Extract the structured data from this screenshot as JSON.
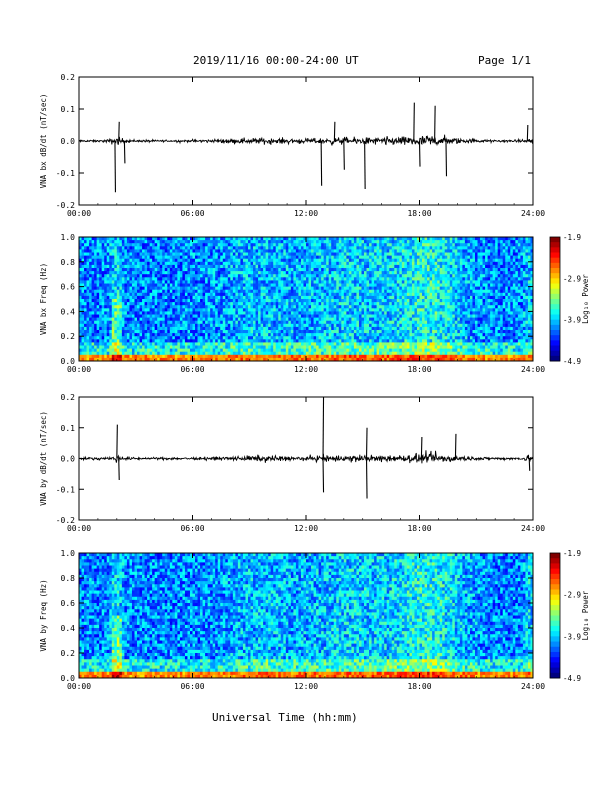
{
  "header": {
    "title": "2019/11/16  00:00-24:00 UT",
    "page": "Page 1/1"
  },
  "xlabel": "Universal Time (hh:mm)",
  "colorbar": {
    "label": "Log₁₀ Power",
    "ticks": [
      "-1.9",
      "-2.9",
      "-3.9",
      "-4.9"
    ],
    "range": [
      -4.9,
      -1.9
    ]
  },
  "chart_data": [
    {
      "type": "line",
      "ylabel": "VNA bx dB/dt (nT/sec)",
      "xlim": [
        0,
        24
      ],
      "ylim": [
        -0.2,
        0.2
      ],
      "x_ticks": [
        "00:00",
        "06:00",
        "12:00",
        "18:00",
        "24:00"
      ],
      "y_ticks": [
        "0.2",
        "0.1",
        "0.0",
        "-0.1",
        "-0.2"
      ],
      "bursts": [
        {
          "x": 1.9,
          "y": -0.16
        },
        {
          "x": 2.1,
          "y": 0.06
        },
        {
          "x": 2.4,
          "y": -0.07
        },
        {
          "x": 12.8,
          "y": -0.14
        },
        {
          "x": 13.5,
          "y": 0.06
        },
        {
          "x": 14.0,
          "y": -0.09
        },
        {
          "x": 15.1,
          "y": -0.15
        },
        {
          "x": 17.7,
          "y": 0.12
        },
        {
          "x": 18.0,
          "y": -0.08
        },
        {
          "x": 18.8,
          "y": 0.11
        },
        {
          "x": 19.4,
          "y": -0.11
        },
        {
          "x": 23.7,
          "y": 0.05
        }
      ]
    },
    {
      "type": "heatmap",
      "ylabel": "VNA bx Freq (Hz)",
      "xlim": [
        0,
        24
      ],
      "ylim": [
        0,
        1.0
      ],
      "x_ticks": [
        "00:00",
        "06:00",
        "12:00",
        "18:00",
        "24:00"
      ],
      "y_ticks": [
        "1.0",
        "0.8",
        "0.6",
        "0.4",
        "0.2",
        "0.0"
      ]
    },
    {
      "type": "line",
      "ylabel": "VNA by dB/dt (nT/sec)",
      "xlim": [
        0,
        24
      ],
      "ylim": [
        -0.2,
        0.2
      ],
      "x_ticks": [
        "00:00",
        "06:00",
        "12:00",
        "18:00",
        "24:00"
      ],
      "y_ticks": [
        "0.2",
        "0.1",
        "0.0",
        "-0.1",
        "-0.2"
      ],
      "bursts": [
        {
          "x": 2.0,
          "y": 0.11
        },
        {
          "x": 2.1,
          "y": -0.07
        },
        {
          "x": 12.9,
          "y": 0.2
        },
        {
          "x": 12.9,
          "y": -0.11
        },
        {
          "x": 15.2,
          "y": 0.1
        },
        {
          "x": 15.2,
          "y": -0.13
        },
        {
          "x": 18.1,
          "y": 0.07
        },
        {
          "x": 19.9,
          "y": 0.08
        },
        {
          "x": 23.8,
          "y": -0.04
        }
      ]
    },
    {
      "type": "heatmap",
      "ylabel": "VNA by Freq (Hz)",
      "xlim": [
        0,
        24
      ],
      "ylim": [
        0,
        1.0
      ],
      "x_ticks": [
        "00:00",
        "06:00",
        "12:00",
        "18:00",
        "24:00"
      ],
      "y_ticks": [
        "1.0",
        "0.8",
        "0.6",
        "0.4",
        "0.2",
        "0.0"
      ]
    }
  ]
}
